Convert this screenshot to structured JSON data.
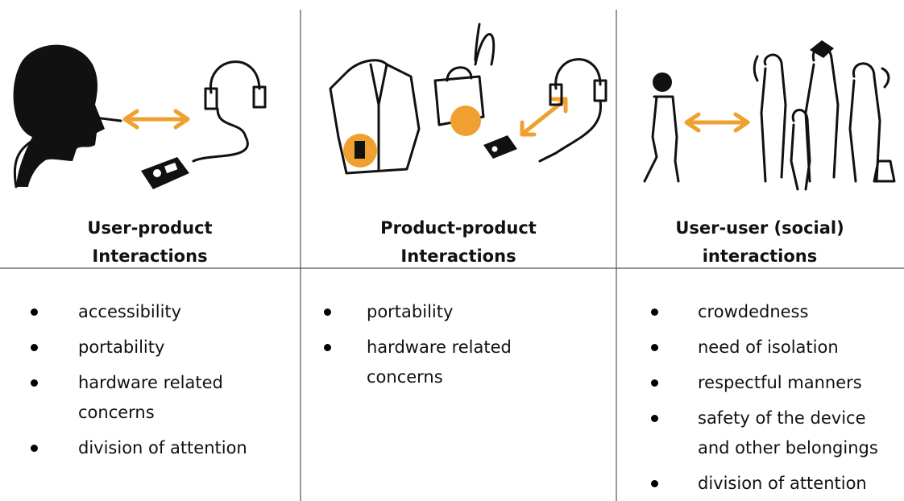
{
  "columns": [
    {
      "heading": [
        "User-product",
        "Interactions"
      ],
      "items": [
        [
          "accessibility"
        ],
        [
          "portability"
        ],
        [
          "hardware related",
          "concerns"
        ],
        [
          "division of attention"
        ]
      ]
    },
    {
      "heading": [
        "Product-product",
        "Interactions"
      ],
      "items": [
        [
          "portability"
        ],
        [
          "hardware related",
          "concerns"
        ]
      ]
    },
    {
      "heading": [
        "User-user (social)",
        "interactions"
      ],
      "items": [
        [
          "crowdedness"
        ],
        [
          "need of isolation"
        ],
        [
          "respectful manners"
        ],
        [
          "safety of the device",
          "and other belongings"
        ],
        [
          "division of attention"
        ]
      ]
    }
  ]
}
